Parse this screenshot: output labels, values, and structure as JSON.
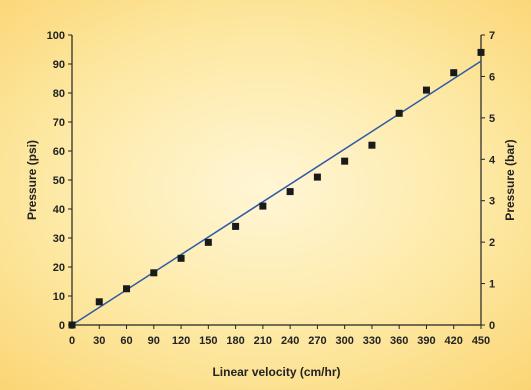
{
  "chart_data": {
    "type": "scatter",
    "title": "",
    "xlabel": "Linear velocity (cm/hr)",
    "ylabel_left": "Pressure (psi)",
    "ylabel_right": "Pressure (bar)",
    "xlim": [
      0,
      450
    ],
    "ylim_left": [
      0,
      100
    ],
    "ylim_right": [
      0,
      7
    ],
    "x_ticks": [
      0,
      30,
      60,
      90,
      120,
      150,
      180,
      210,
      240,
      270,
      300,
      330,
      360,
      390,
      420,
      450
    ],
    "y_ticks_left": [
      0,
      10,
      20,
      30,
      40,
      50,
      60,
      70,
      80,
      90,
      100
    ],
    "y_ticks_right": [
      0,
      1,
      2,
      3,
      4,
      5,
      6,
      7
    ],
    "grid": false,
    "legend": "none",
    "series": [
      {
        "marker": "square",
        "color": "#1a1a1a",
        "x": [
          0,
          30,
          60,
          90,
          120,
          150,
          180,
          210,
          240,
          270,
          300,
          330,
          360,
          390,
          420,
          450
        ],
        "y": [
          0,
          8,
          12.5,
          18,
          23,
          28.5,
          34,
          41,
          46,
          51,
          56.5,
          62,
          73,
          81,
          87,
          94
        ]
      }
    ],
    "trendline": {
      "type": "linear",
      "color": "#2f5aa8",
      "x": [
        0,
        450
      ],
      "y": [
        0,
        91
      ]
    }
  }
}
